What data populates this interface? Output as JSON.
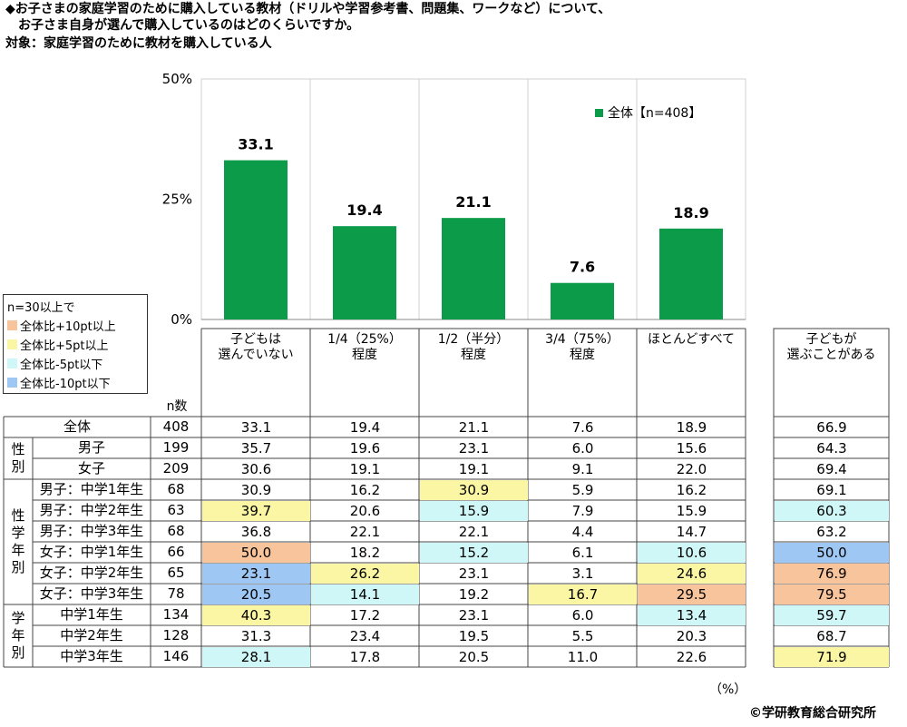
{
  "title_lines": [
    "◆お子さまの家庭学習のために購入している教材（ドリルや学習参考書、問題集、ワークなど）について、",
    "　お子さま自身が選んで購入しているのはどのくらいですか。",
    "対象：家庭学習のために教材を購入している人"
  ],
  "colors": {
    "bar": "#0c9b48",
    "plus10": "#f7c49c",
    "plus5": "#fbf6a4",
    "minus5": "#cff7f7",
    "minus10": "#9ec8f3"
  },
  "legend": {
    "title": "n=30以上で",
    "items": [
      {
        "label": "全体比+10pt以上",
        "color": "#f7c49c"
      },
      {
        "label": "全体比+5pt以上",
        "color": "#fbf6a4"
      },
      {
        "label": "全体比-5pt以下",
        "color": "#cff7f7"
      },
      {
        "label": "全体比-10pt以下",
        "color": "#9ec8f3"
      }
    ]
  },
  "chart_data": {
    "type": "bar",
    "categories": [
      "子どもは選んでいない",
      "1/4（25%）程度",
      "1/2（半分）程度",
      "3/4（75%）程度",
      "ほとんどすべて"
    ],
    "series": [
      {
        "name": "全体【n=408】",
        "values": [
          33.1,
          19.4,
          21.1,
          7.6,
          18.9
        ]
      }
    ],
    "ylim": [
      0,
      50
    ],
    "yticks": [
      "0%",
      "25%",
      "50%"
    ],
    "grid": true,
    "legend_position": "top-right"
  },
  "table": {
    "n_header": "n数",
    "col_headers": [
      [
        "子どもは",
        "選んでいない"
      ],
      [
        "1/4（25%）",
        "程度"
      ],
      [
        "1/2（半分）",
        "程度"
      ],
      [
        "3/4（75%）",
        "程度"
      ],
      [
        "ほとんどすべて",
        ""
      ]
    ],
    "extra_header": [
      "子どもが",
      "選ぶことがある"
    ],
    "groups": [
      {
        "label": "",
        "rows": [
          0
        ]
      },
      {
        "label": "性別",
        "rows": [
          1,
          2
        ]
      },
      {
        "label": "性学年別",
        "rows": [
          3,
          4,
          5,
          6,
          7,
          8
        ]
      },
      {
        "label": "学年別",
        "rows": [
          9,
          10,
          11
        ]
      }
    ],
    "rows": [
      {
        "label": "全体",
        "n": "408",
        "values": [
          "33.1",
          "19.4",
          "21.1",
          "7.6",
          "18.9"
        ],
        "hl": [
          "",
          "",
          "",
          "",
          ""
        ],
        "extra": "66.9",
        "extra_hl": ""
      },
      {
        "label": "男子",
        "n": "199",
        "values": [
          "35.7",
          "19.6",
          "23.1",
          "6.0",
          "15.6"
        ],
        "hl": [
          "",
          "",
          "",
          "",
          ""
        ],
        "extra": "64.3",
        "extra_hl": ""
      },
      {
        "label": "女子",
        "n": "209",
        "values": [
          "30.6",
          "19.1",
          "19.1",
          "9.1",
          "22.0"
        ],
        "hl": [
          "",
          "",
          "",
          "",
          ""
        ],
        "extra": "69.4",
        "extra_hl": ""
      },
      {
        "label": "男子：中学1年生",
        "n": "68",
        "values": [
          "30.9",
          "16.2",
          "30.9",
          "5.9",
          "16.2"
        ],
        "hl": [
          "",
          "",
          "plus5",
          "",
          ""
        ],
        "extra": "69.1",
        "extra_hl": ""
      },
      {
        "label": "男子：中学2年生",
        "n": "63",
        "values": [
          "39.7",
          "20.6",
          "15.9",
          "7.9",
          "15.9"
        ],
        "hl": [
          "plus5",
          "",
          "minus5",
          "",
          ""
        ],
        "extra": "60.3",
        "extra_hl": "minus5"
      },
      {
        "label": "男子：中学3年生",
        "n": "68",
        "values": [
          "36.8",
          "22.1",
          "22.1",
          "4.4",
          "14.7"
        ],
        "hl": [
          "",
          "",
          "",
          "",
          ""
        ],
        "extra": "63.2",
        "extra_hl": ""
      },
      {
        "label": "女子：中学1年生",
        "n": "66",
        "values": [
          "50.0",
          "18.2",
          "15.2",
          "6.1",
          "10.6"
        ],
        "hl": [
          "plus10",
          "",
          "minus5",
          "",
          "minus5"
        ],
        "extra": "50.0",
        "extra_hl": "minus10"
      },
      {
        "label": "女子：中学2年生",
        "n": "65",
        "values": [
          "23.1",
          "26.2",
          "23.1",
          "3.1",
          "24.6"
        ],
        "hl": [
          "minus10",
          "plus5",
          "",
          "",
          "plus5"
        ],
        "extra": "76.9",
        "extra_hl": "plus10"
      },
      {
        "label": "女子：中学3年生",
        "n": "78",
        "values": [
          "20.5",
          "14.1",
          "19.2",
          "16.7",
          "29.5"
        ],
        "hl": [
          "minus10",
          "minus5",
          "",
          "plus5",
          "plus10"
        ],
        "extra": "79.5",
        "extra_hl": "plus10"
      },
      {
        "label": "中学1年生",
        "n": "134",
        "values": [
          "40.3",
          "17.2",
          "23.1",
          "6.0",
          "13.4"
        ],
        "hl": [
          "plus5",
          "",
          "",
          "",
          "minus5"
        ],
        "extra": "59.7",
        "extra_hl": "minus5"
      },
      {
        "label": "中学2年生",
        "n": "128",
        "values": [
          "31.3",
          "23.4",
          "19.5",
          "5.5",
          "20.3"
        ],
        "hl": [
          "",
          "",
          "",
          "",
          ""
        ],
        "extra": "68.7",
        "extra_hl": ""
      },
      {
        "label": "中学3年生",
        "n": "146",
        "values": [
          "28.1",
          "17.8",
          "20.5",
          "11.0",
          "22.6"
        ],
        "hl": [
          "minus5",
          "",
          "",
          "",
          ""
        ],
        "extra": "71.9",
        "extra_hl": "plus5"
      }
    ]
  },
  "unit_note": "（%）",
  "copyright": "©学研教育総合研究所"
}
